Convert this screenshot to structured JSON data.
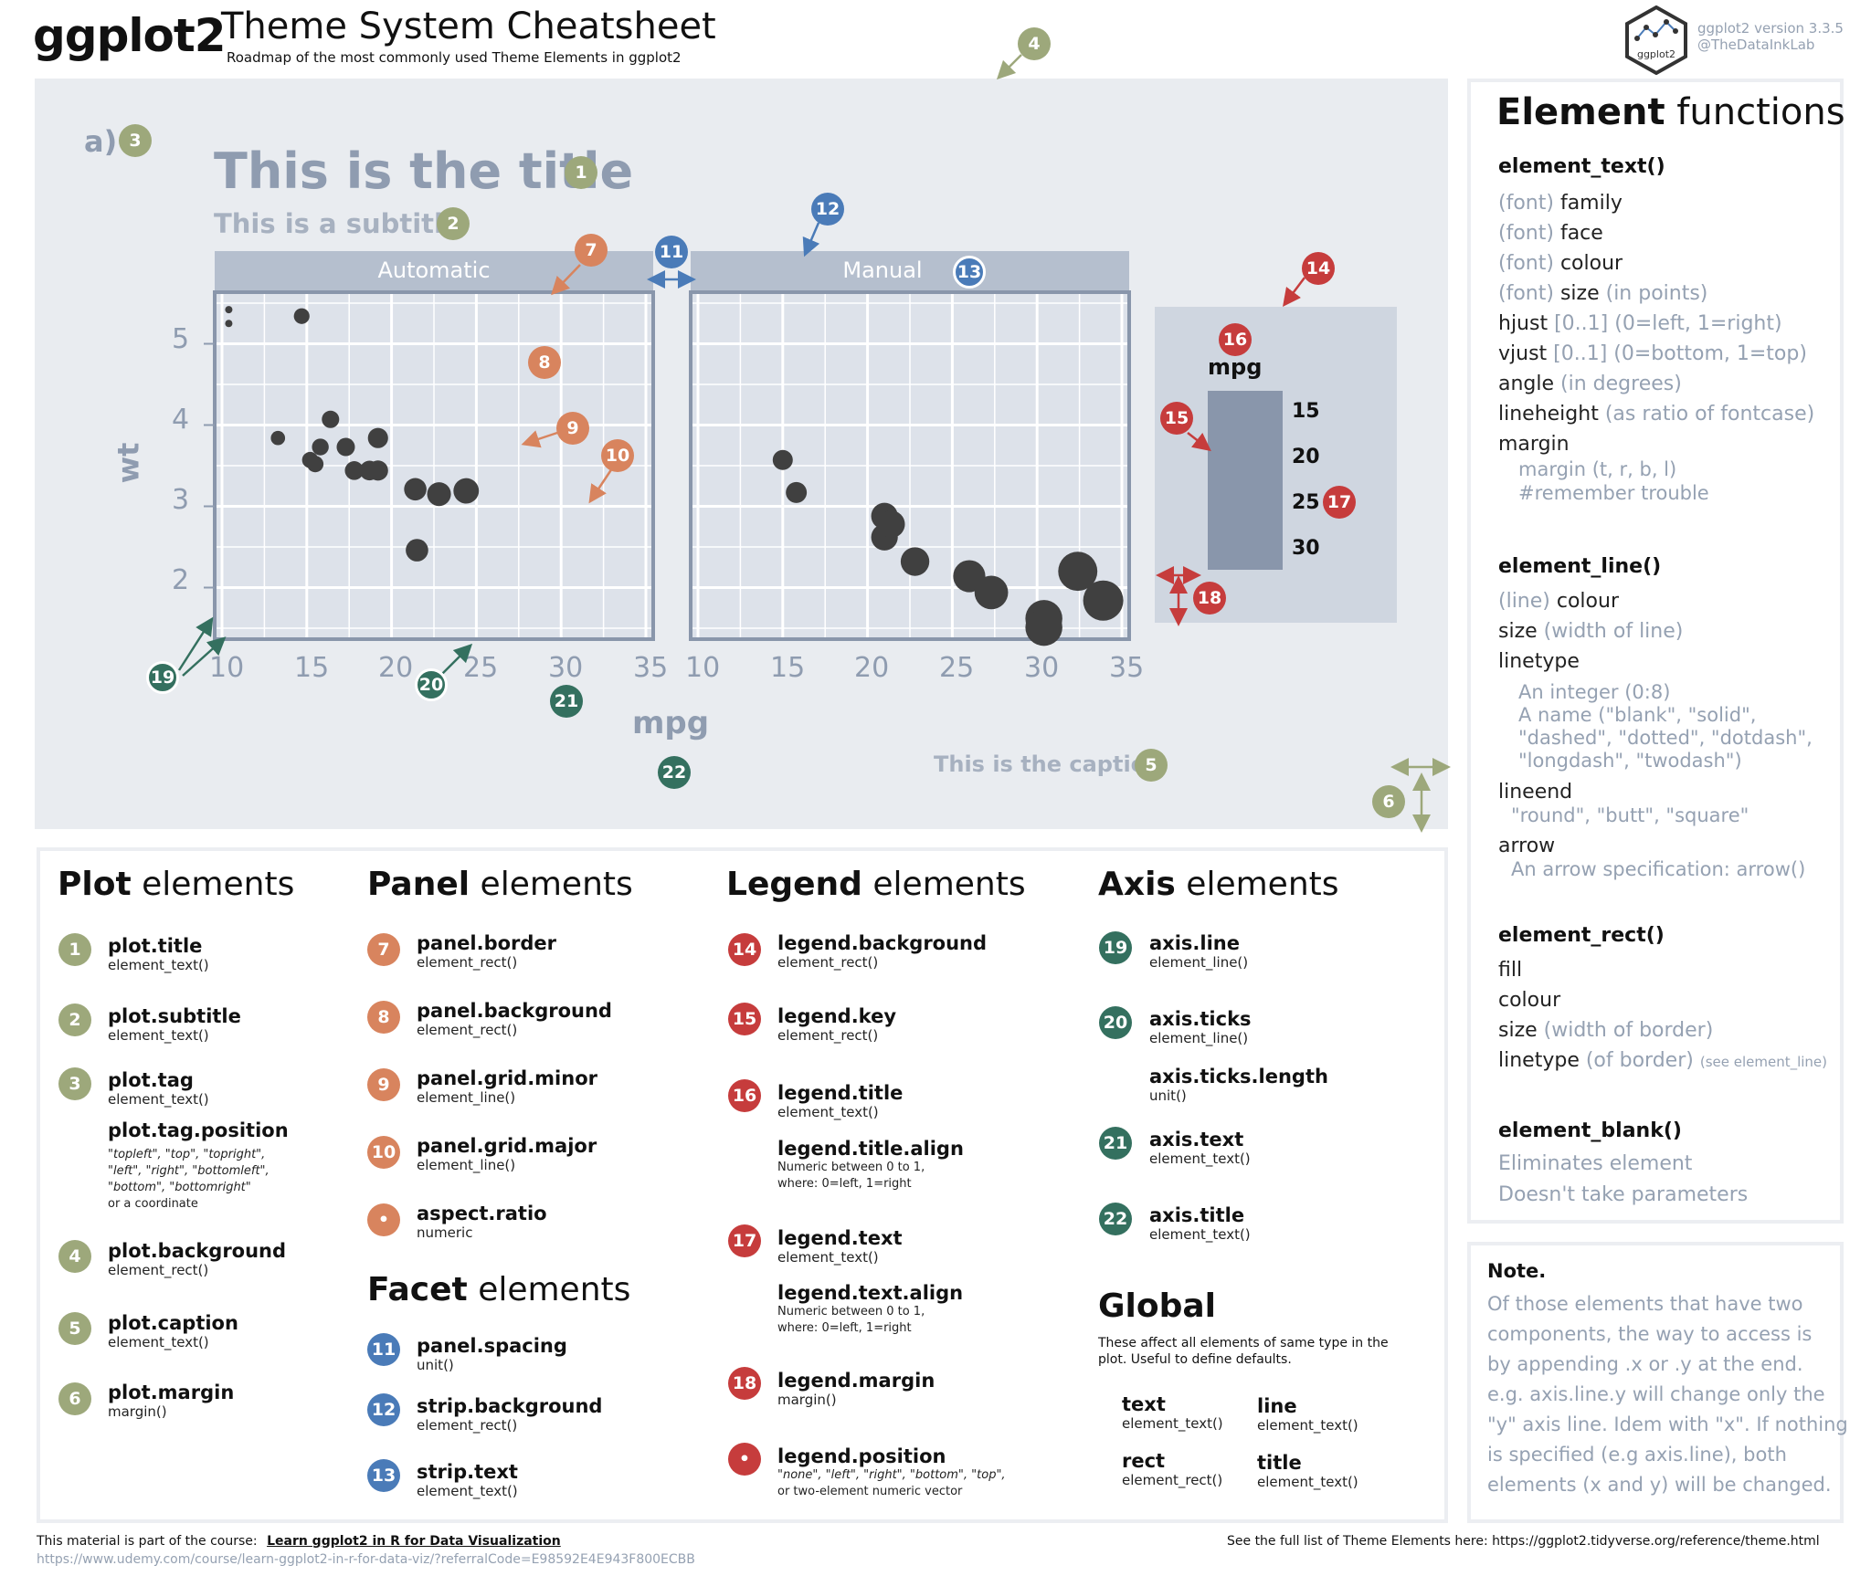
{
  "header": {
    "logo": "ggplot2",
    "title": "Theme System Cheatsheet",
    "subtitle": "Roadmap of the most commonly used Theme Elements in ggplot2",
    "version": "ggplot2 version 3.3.5",
    "handle": "@TheDataInkLab",
    "hex_label": "ggplot2"
  },
  "plot": {
    "tag": "a)",
    "title": "This is the title",
    "subtitle": "This is a subtitle",
    "strip_auto": "Automatic",
    "strip_manual": "Manual",
    "ylabel": "wt",
    "xlabel": "mpg",
    "caption": "This is the caption",
    "yticks": [
      "5",
      "4",
      "3",
      "2"
    ],
    "xticks": [
      "10",
      "15",
      "20",
      "25",
      "30",
      "35"
    ],
    "legend_title": "mpg",
    "legend_labels": [
      "15",
      "20",
      "25",
      "30"
    ]
  },
  "colors": {
    "green": "#9da87b",
    "orange": "#d8845e",
    "blue": "#4a7bb8",
    "red": "#c63c3c",
    "teal": "#34705f",
    "panel": "#dde2ea",
    "strip": "#b5bfce",
    "plot_bg": "#e9ecf0"
  },
  "badges": {
    "n1": "1",
    "n2": "2",
    "n3": "3",
    "n4": "4",
    "n5": "5",
    "n6": "6",
    "n7": "7",
    "n8": "8",
    "n9": "9",
    "n10": "10",
    "n11": "11",
    "n12": "12",
    "n13": "13",
    "n14": "14",
    "n15": "15",
    "n16": "16",
    "n17": "17",
    "n18": "18",
    "n19": "19",
    "n20": "20",
    "n21": "21",
    "n22": "22",
    "dot": "•"
  },
  "plot_elements": {
    "title_bold": "Plot",
    "title_rest": " elements",
    "items": [
      {
        "name": "plot.title",
        "fn": "element_text()"
      },
      {
        "name": "plot.subtitle",
        "fn": "element_text()"
      },
      {
        "name": "plot.tag",
        "fn": "element_text()"
      },
      {
        "name": "plot.background",
        "fn": "element_rect()"
      },
      {
        "name": "plot.caption",
        "fn": "element_text()"
      },
      {
        "name": "plot.margin",
        "fn": "margin()"
      }
    ],
    "tag_position": {
      "name": "plot.tag.position",
      "line1": "\"topleft\", \"top\", \"topright\",",
      "line2": "\"left\", \"right\", \"bottomleft\",",
      "line3": "\"bottom\", \"bottomright\"",
      "line4": "or a coordinate"
    }
  },
  "panel_elements": {
    "title_bold": "Panel",
    "title_rest": " elements",
    "items": [
      {
        "name": "panel.border",
        "fn": "element_rect()"
      },
      {
        "name": "panel.background",
        "fn": "element_rect()"
      },
      {
        "name": "panel.grid.minor",
        "fn": "element_line()"
      },
      {
        "name": "panel.grid.major",
        "fn": "element_line()"
      },
      {
        "name": "aspect.ratio",
        "fn": "numeric"
      }
    ]
  },
  "facet_elements": {
    "title_bold": "Facet",
    "title_rest": " elements",
    "items": [
      {
        "name": "panel.spacing",
        "fn": "unit()"
      },
      {
        "name": "strip.background",
        "fn": "element_rect()"
      },
      {
        "name": "strip.text",
        "fn": "element_text()"
      }
    ]
  },
  "legend_elements": {
    "title_bold": "Legend",
    "title_rest": " elements",
    "items": [
      {
        "name": "legend.background",
        "fn": "element_rect()"
      },
      {
        "name": "legend.key",
        "fn": "element_rect()"
      },
      {
        "name": "legend.title",
        "fn": "element_text()"
      },
      {
        "name": "legend.text",
        "fn": "element_text()"
      },
      {
        "name": "legend.margin",
        "fn": "margin()"
      },
      {
        "name": "legend.position",
        "fn": "\"none\", \"left\", \"right\", \"bottom\", \"top\",",
        "fn2": "or two-element numeric vector"
      }
    ],
    "title_align": {
      "name": "legend.title.align",
      "l1": "Numeric between 0 to 1,",
      "l2": "where: 0=left, 1=right"
    },
    "text_align": {
      "name": "legend.text.align",
      "l1": "Numeric between 0 to 1,",
      "l2": "where: 0=left, 1=right"
    }
  },
  "axis_elements": {
    "title_bold": "Axis",
    "title_rest": " elements",
    "items": [
      {
        "name": "axis.line",
        "fn": "element_line()"
      },
      {
        "name": "axis.ticks",
        "fn": "element_line()"
      },
      {
        "name": "axis.ticks.length",
        "fn": "unit()"
      },
      {
        "name": "axis.text",
        "fn": "element_text()"
      },
      {
        "name": "axis.title",
        "fn": "element_text()"
      }
    ]
  },
  "global": {
    "title": "Global",
    "desc1": "These affect all elements of same type in the",
    "desc2": "plot. Useful to define defaults.",
    "items": [
      {
        "name": "text",
        "fn": "element_text()"
      },
      {
        "name": "line",
        "fn": "element_text()"
      },
      {
        "name": "rect",
        "fn": "element_rect()"
      },
      {
        "name": "title",
        "fn": "element_text()"
      }
    ]
  },
  "element_functions": {
    "title_bold": "Element",
    "title_rest": " functions",
    "text_head": "element_text()",
    "text_items": [
      [
        "(font)",
        " family",
        ""
      ],
      [
        "(font)",
        " face",
        ""
      ],
      [
        "(font)",
        " colour",
        ""
      ],
      [
        "(font)",
        " size ",
        "(in points)"
      ],
      [
        "",
        "hjust ",
        "[0..1] (0=left, 1=right)"
      ],
      [
        "",
        "vjust ",
        "[0..1] (0=bottom, 1=top)"
      ],
      [
        "",
        "angle ",
        "(in degrees)"
      ],
      [
        "",
        "lineheight ",
        "(as ratio of fontcase)"
      ],
      [
        "",
        "margin",
        ""
      ]
    ],
    "margin_sub1": "margin (t, r, b, l)",
    "margin_sub2": "#remember trouble",
    "line_head": "element_line()",
    "line_colour": [
      "(line)",
      " colour"
    ],
    "line_size": [
      "size ",
      "(width of line)"
    ],
    "linetype": "linetype",
    "linetype_sub": [
      "An integer (0:8)",
      "A name (\"blank\", \"solid\",",
      "\"dashed\", \"dotted\", \"dotdash\",",
      "\"longdash\", \"twodash\")"
    ],
    "lineend": "lineend",
    "lineend_sub": "\"round\", \"butt\", \"square\"",
    "arrow": "arrow",
    "arrow_sub": "An arrow specification: arrow()",
    "rect_head": "element_rect()",
    "rect_fill": "fill",
    "rect_colour": "colour",
    "rect_size": [
      "size ",
      "(width of border)"
    ],
    "rect_linetype": [
      "linetype ",
      "(of border) ",
      "(see element_line)"
    ],
    "blank_head": "element_blank()",
    "blank1": "Eliminates element",
    "blank2": "Doesn't take parameters"
  },
  "note": {
    "title": "Note.",
    "lines": [
      "Of those elements that have two",
      "components, the way to access is",
      "by appending .x or .y at the end.",
      "e.g. axis.line.y will change only the",
      "\"y\" axis line. Idem with \"x\". If nothing",
      "is specified (e.g axis.line), both",
      "elements (x and y) will be changed."
    ]
  },
  "footer": {
    "pre": "This material is part of the course:",
    "course": "Learn ggplot2 in R for Data Visualization",
    "url": "https://www.udemy.com/course/learn-ggplot2-in-r-for-data-viz/?referralCode=E98592E4E943F800ECBB",
    "right": "See the full list of Theme Elements here: https://ggplot2.tidyverse.org/reference/theme.html"
  },
  "chart_data": {
    "type": "scatter",
    "xlabel": "mpg",
    "ylabel": "wt",
    "xlim": [
      10,
      35
    ],
    "ylim": [
      1.5,
      5.5
    ],
    "panels": [
      {
        "name": "Automatic",
        "x": [
          10.4,
          10.4,
          14.7,
          13.3,
          15.2,
          15.8,
          17.3,
          19.2,
          15.5,
          16.4,
          17.8,
          18.7,
          19.2,
          21.4,
          22.8,
          24.4,
          21.5
        ],
        "y": [
          5.25,
          5.42,
          5.34,
          3.84,
          3.57,
          3.73,
          3.73,
          3.84,
          3.52,
          4.07,
          3.44,
          3.44,
          3.44,
          3.21,
          3.15,
          3.19,
          2.46
        ]
      },
      {
        "name": "Manual",
        "x": [
          15.0,
          15.8,
          21.0,
          21.0,
          22.8,
          26.0,
          27.3,
          30.4,
          30.4,
          32.4,
          33.9,
          21.4,
          21.4
        ],
        "y": [
          3.57,
          3.17,
          2.62,
          2.88,
          2.32,
          2.14,
          1.94,
          1.62,
          1.51,
          2.2,
          1.84,
          2.78,
          2.78
        ]
      }
    ],
    "legend": {
      "title": "mpg",
      "values": [
        15,
        20,
        25,
        30
      ]
    }
  }
}
